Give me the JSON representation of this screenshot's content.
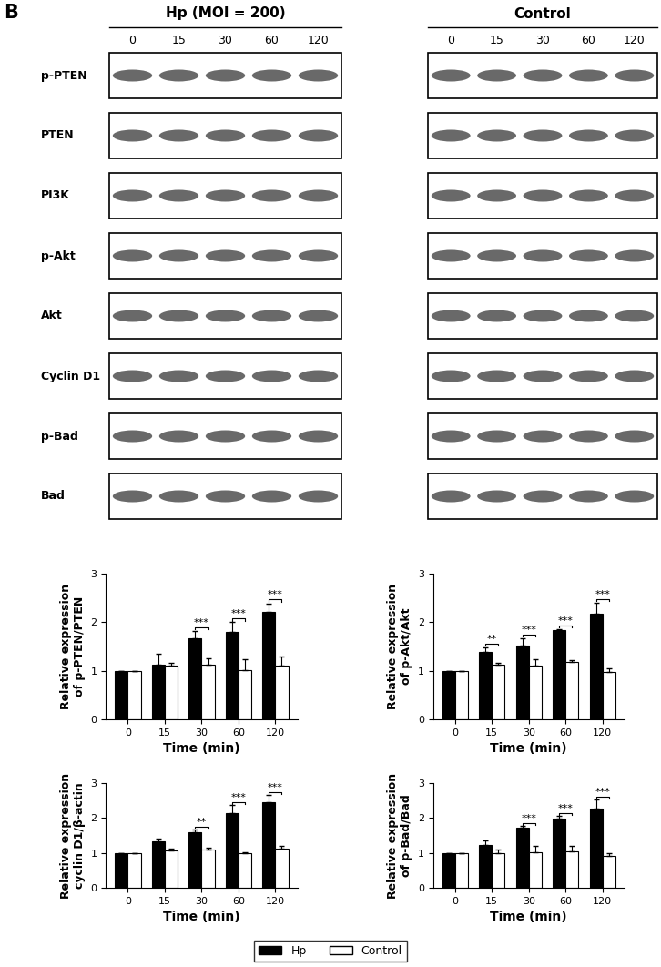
{
  "panel_label": "B",
  "blots": {
    "groups": [
      {
        "title": "Hp (MOI = 200)",
        "times": [
          0,
          15,
          30,
          60,
          120
        ]
      },
      {
        "title": "Control",
        "times": [
          0,
          15,
          30,
          60,
          120
        ]
      }
    ],
    "rows": [
      "p-PTEN",
      "PTEN",
      "PI3K",
      "p-Akt",
      "Akt",
      "Cyclin D1",
      "p-Bad",
      "Bad"
    ]
  },
  "chart_data": [
    {
      "type": "bar",
      "x_label": "Time (min)",
      "y_label": "Relative expression of p-PTEN/PTEN",
      "categories": [
        "0",
        "15",
        "30",
        "60",
        "120"
      ],
      "ylim": [
        0,
        3
      ],
      "yticks": [
        0,
        1,
        2,
        3
      ],
      "legend": "lower center",
      "series": [
        {
          "name": "Hp",
          "color": "#000000",
          "values": [
            1.0,
            1.13,
            1.67,
            1.8,
            2.22
          ],
          "errors": [
            0,
            0.22,
            0.15,
            0.2,
            0.17
          ]
        },
        {
          "name": "Control",
          "color": "#ffffff",
          "values": [
            1.0,
            1.1,
            1.12,
            1.02,
            1.1
          ],
          "errors": [
            0,
            0.07,
            0.13,
            0.22,
            0.2
          ]
        }
      ],
      "annotations": [
        null,
        null,
        "***",
        "***",
        "***"
      ]
    },
    {
      "type": "bar",
      "x_label": "Time (min)",
      "y_label": "Relative expression of p-Akt/Akt",
      "categories": [
        "0",
        "15",
        "30",
        "60",
        "120"
      ],
      "ylim": [
        0,
        3
      ],
      "yticks": [
        0,
        1,
        2,
        3
      ],
      "series": [
        {
          "name": "Hp",
          "color": "#000000",
          "values": [
            1.0,
            1.38,
            1.52,
            1.83,
            2.18
          ],
          "errors": [
            0,
            0.1,
            0.15,
            0.03,
            0.22
          ]
        },
        {
          "name": "Control",
          "color": "#ffffff",
          "values": [
            1.0,
            1.12,
            1.1,
            1.18,
            0.97
          ],
          "errors": [
            0,
            0.04,
            0.13,
            0.04,
            0.08
          ]
        }
      ],
      "annotations": [
        null,
        "**",
        "***",
        "***",
        "***"
      ]
    },
    {
      "type": "bar",
      "x_label": "Time (min)",
      "y_label": "Relative expression cyclin D1/β-actin",
      "categories": [
        "0",
        "15",
        "30",
        "60",
        "120"
      ],
      "ylim": [
        0,
        3
      ],
      "yticks": [
        0,
        1,
        2,
        3
      ],
      "series": [
        {
          "name": "Hp",
          "color": "#000000",
          "values": [
            1.0,
            1.33,
            1.6,
            2.15,
            2.45
          ],
          "errors": [
            0,
            0.08,
            0.08,
            0.22,
            0.22
          ]
        },
        {
          "name": "Control",
          "color": "#ffffff",
          "values": [
            1.0,
            1.06,
            1.1,
            0.98,
            1.13
          ],
          "errors": [
            0,
            0.05,
            0.06,
            0.04,
            0.06
          ]
        }
      ],
      "annotations": [
        null,
        null,
        "**",
        "***",
        "***"
      ]
    },
    {
      "type": "bar",
      "x_label": "Time (min)",
      "y_label": "Relative expression of p-Bad/Bad",
      "categories": [
        "0",
        "15",
        "30",
        "60",
        "120"
      ],
      "ylim": [
        0,
        3
      ],
      "yticks": [
        0,
        1,
        2,
        3
      ],
      "series": [
        {
          "name": "Hp",
          "color": "#000000",
          "values": [
            1.0,
            1.23,
            1.72,
            1.97,
            2.28
          ],
          "errors": [
            0,
            0.13,
            0.05,
            0.1,
            0.25
          ]
        },
        {
          "name": "Control",
          "color": "#ffffff",
          "values": [
            1.0,
            1.0,
            1.03,
            1.05,
            0.92
          ],
          "errors": [
            0,
            0.1,
            0.18,
            0.15,
            0.06
          ]
        }
      ],
      "annotations": [
        null,
        null,
        "***",
        "***",
        "***"
      ]
    }
  ]
}
